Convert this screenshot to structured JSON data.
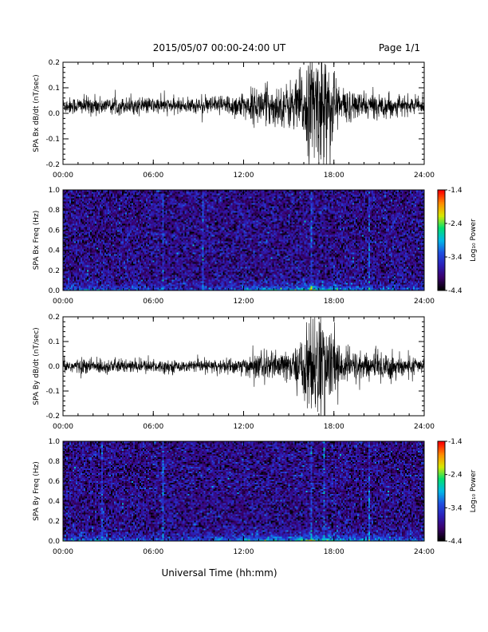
{
  "header": {
    "date_range": "2015/05/07  00:00-24:00 UT",
    "page": "Page 1/1"
  },
  "xlabel_bottom": "Universal Time (hh:mm)",
  "colors": {
    "trace": "#000000",
    "colormap": [
      "#000000",
      "#3a006a",
      "#2b1fb8",
      "#1f4fe0",
      "#00b8e8",
      "#00e070",
      "#d8e800",
      "#ff8c00",
      "#ff0000"
    ]
  },
  "chart_data": [
    {
      "type": "line",
      "ylabel": "SPA Bx dB/dt (nT/sec)",
      "x_ticks": [
        "00:00",
        "06:00",
        "12:00",
        "18:00",
        "24:00"
      ],
      "xlim": [
        0,
        24
      ],
      "ylim": [
        -0.2,
        0.2
      ],
      "y_ticks": [
        "-0.2",
        "-0.1",
        "0.0",
        "0.1",
        "0.2"
      ],
      "y_tick_values": [
        -0.2,
        -0.1,
        0.0,
        0.1,
        0.2
      ],
      "baseline": 0.03,
      "envelope": {
        "hours": [
          0,
          2,
          4,
          6,
          8,
          10,
          12,
          13.5,
          14.5,
          15.5,
          16.3,
          16.8,
          17.3,
          17.8,
          18.5,
          19.5,
          20.5,
          21.5,
          22.5,
          24
        ],
        "amplitude": [
          0.035,
          0.04,
          0.035,
          0.035,
          0.03,
          0.04,
          0.06,
          0.09,
          0.08,
          0.12,
          0.2,
          0.25,
          0.25,
          0.2,
          0.08,
          0.06,
          0.05,
          0.05,
          0.04,
          0.03
        ]
      }
    },
    {
      "type": "heatmap",
      "ylabel": "SPA Bx Freq (Hz)",
      "x_ticks": [
        "00:00",
        "06:00",
        "12:00",
        "18:00",
        "24:00"
      ],
      "xlim": [
        0,
        24
      ],
      "ylim": [
        0.0,
        1.0
      ],
      "y_ticks": [
        "0.0",
        "0.2",
        "0.4",
        "0.6",
        "0.8",
        "1.0"
      ],
      "y_tick_values": [
        0.0,
        0.2,
        0.4,
        0.6,
        0.8,
        1.0
      ],
      "colorbar": {
        "label": "Log₁₀ Power",
        "range": [
          -4.4,
          -1.4
        ],
        "ticks": [
          "-1.4",
          "-2.4",
          "-3.4",
          "-4.4"
        ],
        "tick_values": [
          -1.4,
          -2.4,
          -3.4,
          -4.4
        ]
      },
      "background_power": -3.9,
      "low_freq_enhancement": {
        "hours": [
          0,
          2,
          4,
          6,
          8,
          10,
          12,
          13.5,
          15,
          16.5,
          17.5,
          19,
          21,
          24
        ],
        "power": [
          -3.2,
          -3.1,
          -3.3,
          -3.3,
          -3.4,
          -3.3,
          -3.0,
          -2.7,
          -2.8,
          -2.4,
          -2.5,
          -2.9,
          -3.1,
          -3.3
        ]
      },
      "vertical_streaks_hours": [
        6.6,
        9.3,
        16.5,
        20.3
      ]
    },
    {
      "type": "line",
      "ylabel": "SPA By dB/dt (nT/sec)",
      "x_ticks": [
        "00:00",
        "06:00",
        "12:00",
        "18:00",
        "24:00"
      ],
      "xlim": [
        0,
        24
      ],
      "ylim": [
        -0.2,
        0.2
      ],
      "y_ticks": [
        "-0.2",
        "-0.1",
        "0.0",
        "0.1",
        "0.2"
      ],
      "y_tick_values": [
        -0.2,
        -0.1,
        0.0,
        0.1,
        0.2
      ],
      "baseline": 0.0,
      "envelope": {
        "hours": [
          0,
          2,
          4,
          6,
          8,
          10,
          12,
          13.5,
          14.5,
          15.5,
          16.3,
          16.8,
          17.3,
          17.8,
          18.5,
          19.5,
          20.5,
          21.5,
          22.5,
          24
        ],
        "amplitude": [
          0.03,
          0.035,
          0.03,
          0.03,
          0.025,
          0.03,
          0.04,
          0.07,
          0.06,
          0.08,
          0.2,
          0.25,
          0.22,
          0.18,
          0.08,
          0.07,
          0.06,
          0.08,
          0.05,
          0.03
        ]
      }
    },
    {
      "type": "heatmap",
      "ylabel": "SPA By Freq (Hz)",
      "x_ticks": [
        "00:00",
        "06:00",
        "12:00",
        "18:00",
        "24:00"
      ],
      "xlim": [
        0,
        24
      ],
      "ylim": [
        0.0,
        1.0
      ],
      "y_ticks": [
        "0.0",
        "0.2",
        "0.4",
        "0.6",
        "0.8",
        "1.0"
      ],
      "y_tick_values": [
        0.0,
        0.2,
        0.4,
        0.6,
        0.8,
        1.0
      ],
      "colorbar": {
        "label": "Log₁₀ Power",
        "range": [
          -4.4,
          -1.4
        ],
        "ticks": [
          "-1.4",
          "-2.4",
          "-3.4",
          "-4.4"
        ],
        "tick_values": [
          -1.4,
          -2.4,
          -3.4,
          -4.4
        ]
      },
      "background_power": -3.9,
      "low_freq_enhancement": {
        "hours": [
          0,
          2,
          4,
          6,
          8,
          10,
          12,
          13.5,
          15,
          16.5,
          17.5,
          19,
          21,
          24
        ],
        "power": [
          -3.1,
          -3.0,
          -3.2,
          -3.3,
          -3.3,
          -3.2,
          -2.9,
          -2.6,
          -2.8,
          -2.3,
          -2.4,
          -2.8,
          -3.0,
          -3.2
        ]
      },
      "vertical_streaks_hours": [
        2.6,
        6.6,
        16.5,
        17.4,
        20.3
      ]
    }
  ]
}
